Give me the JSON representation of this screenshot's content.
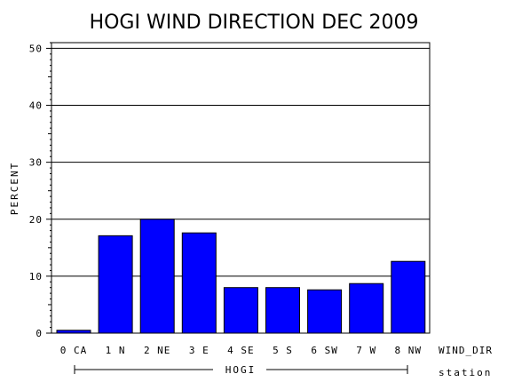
{
  "chart_data": {
    "type": "bar",
    "title": "HOGI WIND DIRECTION DEC 2009",
    "ylabel": "PERCENT",
    "xlabel": "WIND_DIR",
    "station_label": "station",
    "station_group": "HOGI",
    "categories": [
      "0 CA",
      "1 N",
      "2 NE",
      "3 E",
      "4 SE",
      "5 S",
      "6 SW",
      "7 W",
      "8 NW"
    ],
    "values": [
      0.5,
      17.1,
      20.0,
      17.6,
      8.0,
      8.0,
      7.6,
      8.7,
      12.6
    ],
    "ylim": [
      0,
      51
    ],
    "yticks": [
      "0",
      "10",
      "20",
      "30",
      "40",
      "50"
    ],
    "grid": true,
    "colors": {
      "bar": "#0000ff",
      "axis": "#000000",
      "grid": "#000000"
    }
  }
}
